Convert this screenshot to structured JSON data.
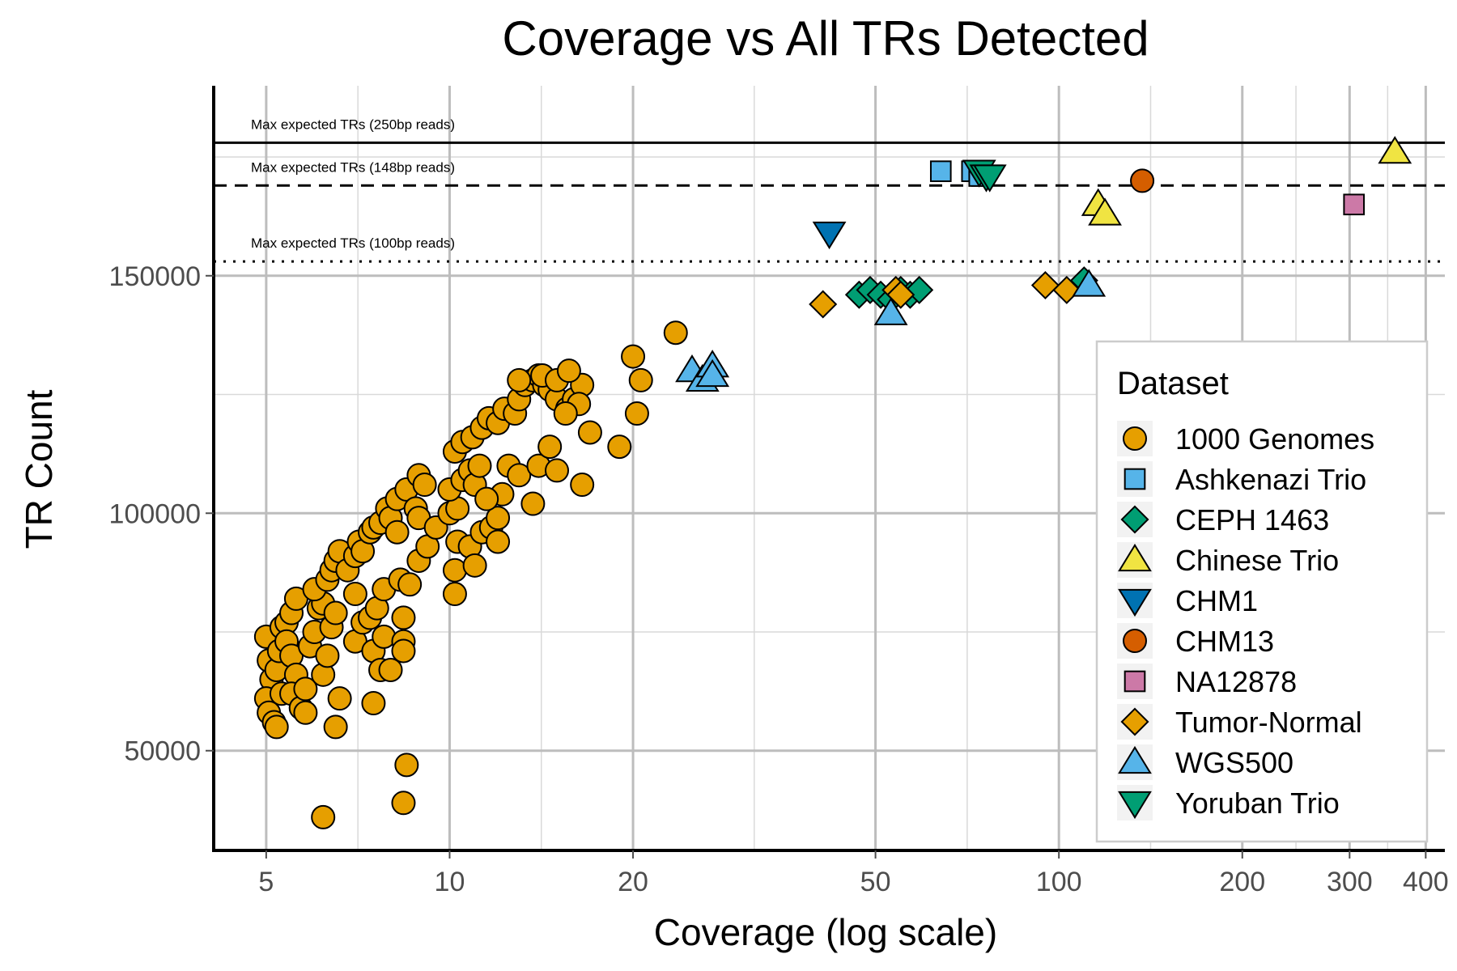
{
  "chart_data": {
    "type": "scatter",
    "title": "Coverage vs All TRs Detected",
    "xlabel": "Coverage (log scale)",
    "ylabel": "TR Count",
    "x_scale": "log",
    "xlim": [
      4.1,
      430
    ],
    "ylim": [
      29000,
      190000
    ],
    "x_ticks": [
      5,
      10,
      20,
      50,
      100,
      200,
      300,
      400
    ],
    "x_tick_labels": [
      "5",
      "10",
      "20",
      "50",
      "100",
      "200",
      "300",
      "400"
    ],
    "y_ticks": [
      50000,
      100000,
      150000
    ],
    "y_tick_labels": [
      "50000",
      "100000",
      "150000"
    ],
    "grid": true,
    "legend": {
      "title": "Dataset",
      "position": "right"
    },
    "reference_lines": [
      {
        "label": "Max expected TRs (250bp reads)",
        "y": 178000,
        "style": "solid"
      },
      {
        "label": "Max expected TRs (148bp reads)",
        "y": 169000,
        "style": "dashed"
      },
      {
        "label": "Max expected TRs (100bp reads)",
        "y": 153000,
        "style": "dotted"
      }
    ],
    "series": [
      {
        "name": "1000 Genomes",
        "shape": "circle",
        "color": "#E69F00",
        "points": [
          [
            5.0,
            74000
          ],
          [
            5.05,
            69000
          ],
          [
            5.1,
            65000
          ],
          [
            5.0,
            61000
          ],
          [
            5.05,
            58000
          ],
          [
            5.15,
            56000
          ],
          [
            5.2,
            55000
          ],
          [
            5.3,
            62000
          ],
          [
            5.2,
            67000
          ],
          [
            5.25,
            71000
          ],
          [
            5.3,
            76000
          ],
          [
            5.4,
            77000
          ],
          [
            5.5,
            79000
          ],
          [
            5.6,
            82000
          ],
          [
            5.4,
            73000
          ],
          [
            5.5,
            70000
          ],
          [
            5.6,
            66000
          ],
          [
            5.5,
            62000
          ],
          [
            5.7,
            59000
          ],
          [
            5.8,
            58000
          ],
          [
            5.8,
            63000
          ],
          [
            5.9,
            72000
          ],
          [
            6.0,
            75000
          ],
          [
            6.1,
            80000
          ],
          [
            6.2,
            81000
          ],
          [
            6.0,
            84000
          ],
          [
            6.3,
            86000
          ],
          [
            6.4,
            88000
          ],
          [
            6.5,
            90000
          ],
          [
            6.6,
            92000
          ],
          [
            6.2,
            66000
          ],
          [
            6.3,
            70000
          ],
          [
            6.4,
            76000
          ],
          [
            6.5,
            79000
          ],
          [
            6.6,
            61000
          ],
          [
            6.5,
            55000
          ],
          [
            6.8,
            88000
          ],
          [
            7.0,
            91000
          ],
          [
            7.1,
            94000
          ],
          [
            7.2,
            92000
          ],
          [
            7.4,
            96000
          ],
          [
            7.5,
            97000
          ],
          [
            7.7,
            98000
          ],
          [
            7.9,
            101000
          ],
          [
            8.0,
            99000
          ],
          [
            8.2,
            103000
          ],
          [
            8.5,
            105000
          ],
          [
            7.0,
            73000
          ],
          [
            7.2,
            77000
          ],
          [
            7.0,
            83000
          ],
          [
            7.4,
            78000
          ],
          [
            7.6,
            80000
          ],
          [
            7.8,
            84000
          ],
          [
            7.5,
            71000
          ],
          [
            7.8,
            74000
          ],
          [
            7.7,
            67000
          ],
          [
            8.0,
            67000
          ],
          [
            7.5,
            60000
          ],
          [
            8.3,
            86000
          ],
          [
            8.6,
            85000
          ],
          [
            8.9,
            90000
          ],
          [
            9.2,
            93000
          ],
          [
            8.4,
            73000
          ],
          [
            8.4,
            71000
          ],
          [
            8.4,
            78000
          ],
          [
            8.2,
            96000
          ],
          [
            8.8,
            101000
          ],
          [
            8.9,
            108000
          ],
          [
            9.1,
            106000
          ],
          [
            8.9,
            99000
          ],
          [
            9.5,
            97000
          ],
          [
            10.0,
            100000
          ],
          [
            10.3,
            101000
          ],
          [
            10.0,
            105000
          ],
          [
            10.5,
            107000
          ],
          [
            10.8,
            109000
          ],
          [
            11.0,
            106000
          ],
          [
            11.2,
            110000
          ],
          [
            10.2,
            113000
          ],
          [
            10.5,
            115000
          ],
          [
            10.9,
            116000
          ],
          [
            11.3,
            118000
          ],
          [
            11.6,
            120000
          ],
          [
            12.0,
            119000
          ],
          [
            12.3,
            122000
          ],
          [
            12.8,
            121000
          ],
          [
            13.0,
            124000
          ],
          [
            13.3,
            127000
          ],
          [
            13.7,
            128000
          ],
          [
            14.0,
            129000
          ],
          [
            14.3,
            127000
          ],
          [
            14.6,
            126000
          ],
          [
            15.0,
            124000
          ],
          [
            15.6,
            122000
          ],
          [
            16.0,
            124000
          ],
          [
            16.5,
            127000
          ],
          [
            10.3,
            94000
          ],
          [
            10.2,
            88000
          ],
          [
            10.2,
            83000
          ],
          [
            10.8,
            93000
          ],
          [
            11.0,
            89000
          ],
          [
            11.3,
            96000
          ],
          [
            11.7,
            97000
          ],
          [
            12.0,
            99000
          ],
          [
            12.2,
            104000
          ],
          [
            11.5,
            103000
          ],
          [
            12.5,
            110000
          ],
          [
            13.0,
            108000
          ],
          [
            14.0,
            110000
          ],
          [
            14.6,
            114000
          ],
          [
            15.0,
            109000
          ],
          [
            13.7,
            102000
          ],
          [
            12.0,
            94000
          ],
          [
            13.0,
            128000
          ],
          [
            14.2,
            129000
          ],
          [
            15.0,
            128000
          ],
          [
            15.7,
            130000
          ],
          [
            16.3,
            123000
          ],
          [
            15.5,
            121000
          ],
          [
            16.5,
            106000
          ],
          [
            17.0,
            117000
          ],
          [
            19.0,
            114000
          ],
          [
            20.0,
            133000
          ],
          [
            20.6,
            128000
          ],
          [
            20.3,
            121000
          ],
          [
            23.5,
            138000
          ],
          [
            8.5,
            47000
          ],
          [
            8.4,
            39000
          ],
          [
            6.2,
            36000
          ]
        ]
      },
      {
        "name": "Ashkenazi Trio",
        "shape": "square",
        "color": "#56B4E9",
        "points": [
          [
            64,
            172000
          ],
          [
            72,
            172000
          ],
          [
            74,
            171000
          ]
        ]
      },
      {
        "name": "CEPH 1463",
        "shape": "diamond",
        "color": "#009E73",
        "points": [
          [
            47,
            146000
          ],
          [
            49,
            147000
          ],
          [
            51,
            146000
          ],
          [
            53,
            145000
          ],
          [
            55,
            147000
          ],
          [
            57,
            146000
          ],
          [
            59,
            147000
          ],
          [
            110,
            149000
          ]
        ]
      },
      {
        "name": "Chinese Trio",
        "shape": "triangle-up",
        "color": "#F0E442",
        "points": [
          [
            116,
            165000
          ],
          [
            119,
            163000
          ],
          [
            356,
            176000
          ]
        ]
      },
      {
        "name": "CHM1",
        "shape": "triangle-down",
        "color": "#0072B2",
        "points": [
          [
            42,
            159000
          ]
        ]
      },
      {
        "name": "CHM13",
        "shape": "circle",
        "color": "#D55E00",
        "points": [
          [
            137,
            170000
          ]
        ]
      },
      {
        "name": "NA12878",
        "shape": "square",
        "color": "#CC79A7",
        "points": [
          [
            305,
            165000
          ]
        ]
      },
      {
        "name": "Tumor-Normal",
        "shape": "diamond",
        "color": "#E69F00",
        "points": [
          [
            41,
            144000
          ],
          [
            54,
            147000
          ],
          [
            55,
            146000
          ],
          [
            95,
            148000
          ],
          [
            103,
            147000
          ]
        ]
      },
      {
        "name": "WGS500",
        "shape": "triangle-up",
        "color": "#56B4E9",
        "points": [
          [
            25,
            130000
          ],
          [
            26,
            128000
          ],
          [
            27,
            131000
          ],
          [
            27,
            129000
          ],
          [
            53,
            142000
          ],
          [
            112,
            148000
          ]
        ]
      },
      {
        "name": "Yoruban Trio",
        "shape": "triangle-down",
        "color": "#009E73",
        "points": [
          [
            74,
            172000
          ],
          [
            76,
            171000
          ],
          [
            77,
            171000
          ]
        ]
      }
    ]
  }
}
